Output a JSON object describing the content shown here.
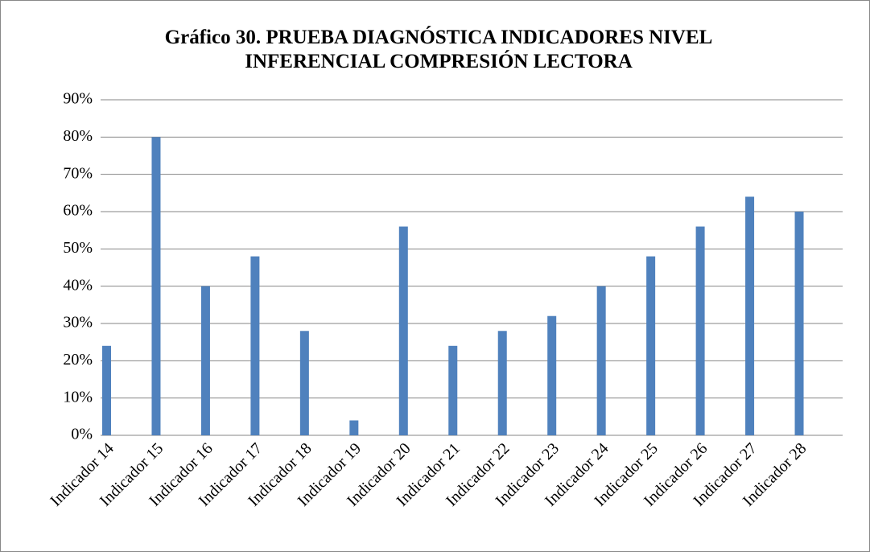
{
  "chart_data": {
    "type": "bar",
    "title": "Gráfico 30. PRUEBA DIAGNÓSTICA INDICADORES NIVEL INFERENCIAL COMPRESIÓN LECTORA",
    "categories": [
      "Indicador 14",
      "Indicador 15",
      "Indicador 16",
      "Indicador 17",
      "Indicador 18",
      "Indicador 19",
      "Indicador 20",
      "Indicador 21",
      "Indicador 22",
      "Indicador 23",
      "Indicador 24",
      "Indicador 25",
      "Indicador 26",
      "Indicador 27",
      "Indicador 28"
    ],
    "values": [
      24,
      80,
      40,
      48,
      28,
      4,
      56,
      24,
      28,
      32,
      40,
      48,
      56,
      64,
      60
    ],
    "color": "#4f81bd",
    "ylim": [
      0,
      90
    ],
    "yticks": [
      {
        "value": 0,
        "label": "0%"
      },
      {
        "value": 10,
        "label": "10%"
      },
      {
        "value": 20,
        "label": "20%"
      },
      {
        "value": 30,
        "label": "30%"
      },
      {
        "value": 40,
        "label": "40%"
      },
      {
        "value": 50,
        "label": "50%"
      },
      {
        "value": 60,
        "label": "60%"
      },
      {
        "value": 70,
        "label": "70%"
      },
      {
        "value": 80,
        "label": "80%"
      },
      {
        "value": 90,
        "label": "90%"
      }
    ],
    "grid": true
  }
}
